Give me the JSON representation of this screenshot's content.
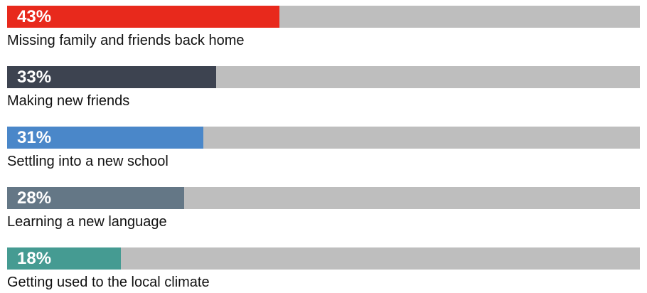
{
  "chart_data": {
    "type": "bar",
    "orientation": "horizontal",
    "categories": [
      "Missing family and friends back home",
      "Making new friends",
      "Settling into a new school",
      "Learning a new language",
      "Getting used to the local climate"
    ],
    "values": [
      43,
      33,
      31,
      28,
      18
    ],
    "value_labels": [
      "43%",
      "33%",
      "31%",
      "28%",
      "18%"
    ],
    "colors": [
      "#e8291c",
      "#3d4350",
      "#4a87c9",
      "#647786",
      "#459b92"
    ],
    "track_color": "#bebebe",
    "xlim": [
      0,
      100
    ],
    "grid": false,
    "legend": "none"
  }
}
